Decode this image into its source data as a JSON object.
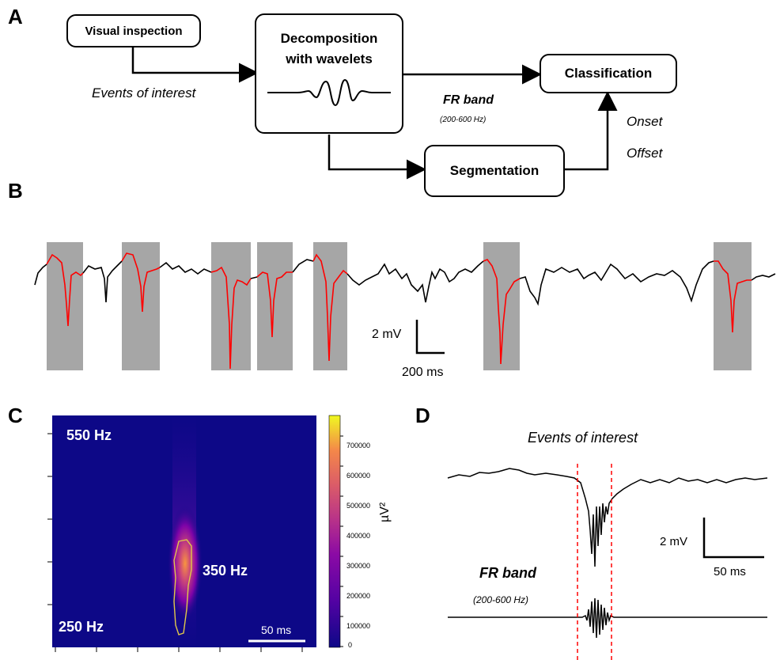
{
  "panels": {
    "a": "A",
    "b": "B",
    "c": "C",
    "d": "D"
  },
  "panel_a": {
    "visual_inspection": "Visual inspection",
    "decomposition_line1": "Decomposition",
    "decomposition_line2": "with wavelets",
    "classification": "Classification",
    "segmentation": "Segmentation",
    "events_of_interest": "Events of interest",
    "fr_band": "FR band",
    "fr_range": "(200-600 Hz)",
    "onset": "Onset",
    "offset": "Offset"
  },
  "panel_b": {
    "scale_voltage": "2 mV",
    "scale_time": "200 ms"
  },
  "panel_c": {
    "label_550": "550 Hz",
    "label_350": "350 Hz",
    "label_250": "250 Hz",
    "scale_time": "50 ms",
    "colorbar_unit": "µV²",
    "colorbar_ticks": [
      "700000",
      "600000",
      "500000",
      "400000",
      "300000",
      "200000",
      "100000",
      "0"
    ],
    "colors": {
      "background": "#0d0887",
      "hot": "#cc4778",
      "peak": "#f89540",
      "contour": "#e0c84a"
    }
  },
  "panel_d": {
    "events_of_interest": "Events of interest",
    "fr_band": "FR band",
    "fr_range": "(200-600 Hz)",
    "scale_voltage": "2 mV",
    "scale_time": "50 ms"
  },
  "colors": {
    "event_trace": "#ff0000",
    "event_window": "#a6a6a6",
    "marker": "#ff0000"
  }
}
